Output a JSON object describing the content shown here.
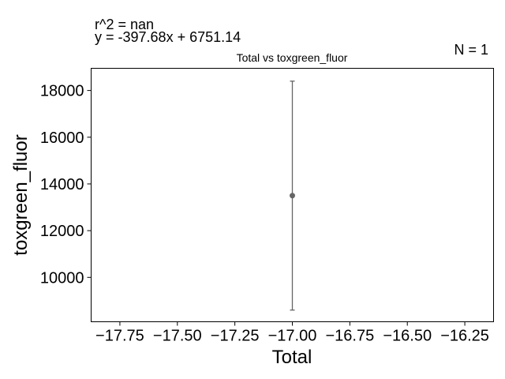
{
  "annotations": {
    "r2": "r^2 = nan",
    "equation": "y = -397.68x + 6751.14",
    "n": "N = 1"
  },
  "chart_data": {
    "type": "scatter",
    "title": "Total vs toxgreen_fluor",
    "xlabel": "Total",
    "ylabel": "toxgreen_fluor",
    "xlim": [
      -17.875,
      -16.125
    ],
    "ylim": [
      8100,
      18950
    ],
    "x_ticks": [
      -17.75,
      -17.5,
      -17.25,
      -17.0,
      -16.75,
      -16.5,
      -16.25
    ],
    "x_tick_labels": [
      "−17.75",
      "−17.50",
      "−17.25",
      "−17.00",
      "−16.75",
      "−16.50",
      "−16.25"
    ],
    "y_ticks": [
      10000,
      12000,
      14000,
      16000,
      18000
    ],
    "y_tick_labels": [
      "10000",
      "12000",
      "14000",
      "16000",
      "18000"
    ],
    "points": [
      {
        "x": -17.0,
        "y": 13500,
        "err_low": 8600,
        "err_high": 18400
      }
    ],
    "grid": false,
    "legend": false,
    "colors": {
      "marker": "#666666",
      "errorbar": "#666666",
      "axes": "#000000"
    }
  }
}
